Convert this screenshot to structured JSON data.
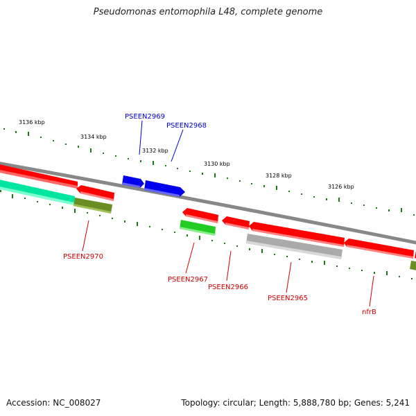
{
  "title": "Pseudomonas entomophila L48, complete genome",
  "accession_text": "Accession: NC_008027",
  "summary_text": "Topology: circular; Length: 5,888,780 bp; Genes: 5,241",
  "colors": {
    "backbone": "#808080",
    "tick": "#1a7a1a",
    "label_blue": "#0000cc",
    "label_red": "#cc0000",
    "red": "#ff0000",
    "blue": "#0000ff",
    "green": "#2ecc2e",
    "teal": "#00e5a0",
    "olive": "#6b8e23",
    "gray": "#b0b0b0"
  },
  "scale_labels": [
    {
      "text": "3136 kbp"
    },
    {
      "text": "3134 kbp"
    },
    {
      "text": "3132 kbp"
    },
    {
      "text": "3130 kbp"
    },
    {
      "text": "3128 kbp"
    },
    {
      "text": "3126 kbp"
    }
  ],
  "genes": [
    {
      "label": "PSEEN2970",
      "strand": "reverse",
      "color_key": "label_red"
    },
    {
      "label": "PSEEN2969",
      "strand": "forward",
      "color_key": "label_blue"
    },
    {
      "label": "PSEEN2968",
      "strand": "forward",
      "color_key": "label_blue"
    },
    {
      "label": "PSEEN2967",
      "strand": "reverse",
      "color_key": "label_red"
    },
    {
      "label": "PSEEN2966",
      "strand": "reverse",
      "color_key": "label_red"
    },
    {
      "label": "PSEEN2965",
      "strand": "reverse",
      "color_key": "label_red"
    },
    {
      "label": "nfrB",
      "strand": "reverse",
      "color_key": "label_red"
    }
  ]
}
